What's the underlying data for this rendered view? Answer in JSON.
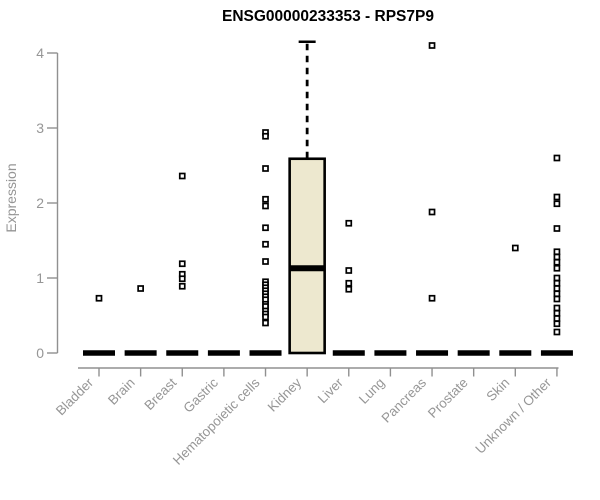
{
  "colors": {
    "background": "#ffffff",
    "axis": "#909090",
    "tick_text": "#969696",
    "box_fill": "#ede8cf",
    "ink": "#000000",
    "outlier_fill": "#ffffff"
  },
  "chart_data": {
    "type": "box",
    "title": "ENSG00000233353 - RPS7P9",
    "xlabel": "",
    "ylabel": "Expression",
    "ylim": [
      0,
      4
    ],
    "yticks": [
      0,
      1,
      2,
      3,
      4
    ],
    "grid": false,
    "legend": false,
    "categories": [
      "Bladder",
      "Brain",
      "Breast",
      "Gastric",
      "Hematopoietic cells",
      "Kidney",
      "Liver",
      "Lung",
      "Pancreas",
      "Prostate",
      "Skin",
      "Unknown / Other"
    ],
    "series": [
      {
        "category": "Bladder",
        "q1": 0,
        "median": 0,
        "q3": 0,
        "outliers": [
          0.73
        ]
      },
      {
        "category": "Brain",
        "q1": 0,
        "median": 0,
        "q3": 0,
        "outliers": [
          0.86
        ]
      },
      {
        "category": "Breast",
        "q1": 0,
        "median": 0,
        "q3": 0,
        "outliers": [
          2.36,
          1.19,
          1.05,
          0.99,
          0.89
        ]
      },
      {
        "category": "Gastric",
        "q1": 0,
        "median": 0,
        "q3": 0,
        "outliers": []
      },
      {
        "category": "Hematopoietic cells",
        "q1": 0,
        "median": 0,
        "q3": 0,
        "outliers": [
          2.94,
          2.89,
          2.46,
          2.05,
          1.96,
          1.67,
          1.45,
          1.22,
          0.95,
          0.91,
          0.87,
          0.83,
          0.79,
          0.75,
          0.71,
          0.65,
          0.62,
          0.56,
          0.52,
          0.48,
          0.4
        ]
      },
      {
        "category": "Kidney",
        "q1": 0,
        "median": 1.13,
        "q3": 2.59,
        "whisker_low": 0,
        "whisker_high": 4.15,
        "outliers": []
      },
      {
        "category": "Liver",
        "q1": 0,
        "median": 0,
        "q3": 0,
        "outliers": [
          1.73,
          1.1,
          0.93,
          0.85
        ]
      },
      {
        "category": "Lung",
        "q1": 0,
        "median": 0,
        "q3": 0,
        "outliers": []
      },
      {
        "category": "Pancreas",
        "q1": 0,
        "median": 0,
        "q3": 0,
        "outliers": [
          4.1,
          1.88,
          0.73
        ]
      },
      {
        "category": "Prostate",
        "q1": 0,
        "median": 0,
        "q3": 0,
        "outliers": []
      },
      {
        "category": "Skin",
        "q1": 0,
        "median": 0,
        "q3": 0,
        "outliers": [
          1.4
        ]
      },
      {
        "category": "Unknown / Other",
        "q1": 0,
        "median": 0,
        "q3": 0,
        "outliers": [
          2.6,
          2.08,
          1.99,
          1.66,
          1.35,
          1.28,
          1.21,
          1.13,
          1.0,
          0.93,
          0.86,
          0.79,
          0.72,
          0.6,
          0.53,
          0.46,
          0.39,
          0.28
        ]
      }
    ]
  }
}
